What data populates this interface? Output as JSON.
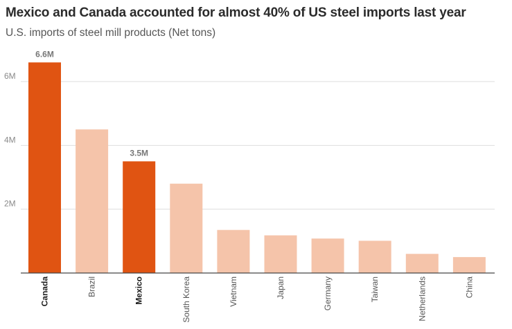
{
  "chart_data": {
    "type": "bar",
    "title": "Mexico and Canada accounted for almost 40% of US steel imports last year",
    "subtitle": "U.S. imports of steel mill products (Net tons)",
    "xlabel": "",
    "ylabel": "",
    "ylim": [
      0,
      7000000
    ],
    "yticks": [
      {
        "value": 2000000,
        "label": "2M"
      },
      {
        "value": 4000000,
        "label": "4M"
      },
      {
        "value": 6000000,
        "label": "6M"
      }
    ],
    "grid": true,
    "categories": [
      "Canada",
      "Brazil",
      "Mexico",
      "South Korea",
      "Vietnam",
      "Japan",
      "Germany",
      "Taiwan",
      "Netherlands",
      "China"
    ],
    "values": [
      6600000,
      4500000,
      3500000,
      2800000,
      1350000,
      1180000,
      1080000,
      1010000,
      600000,
      500000
    ],
    "highlighted": [
      "Canada",
      "Mexico"
    ],
    "data_labels": {
      "Canada": "6.6M",
      "Mexico": "3.5M"
    },
    "colors": {
      "highlight": "#e05412",
      "base": "#f5c4aa",
      "grid": "#dddddd",
      "axis": "#444444"
    }
  }
}
